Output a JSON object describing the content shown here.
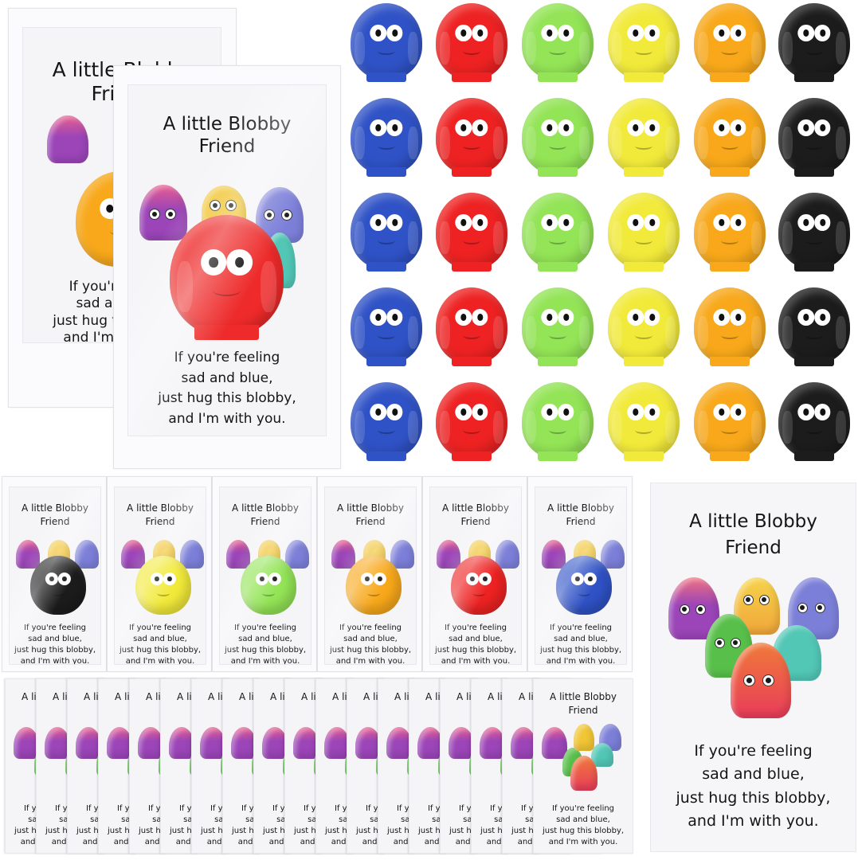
{
  "card_text": {
    "title_line1": "A little Blobby",
    "title_line2": "Friend",
    "poem_line1": "If you're feeling",
    "poem_line2": "sad and blue,",
    "poem_line3": "just hug this blobby,",
    "poem_line4": "and I'm with you.",
    "partial_title": "A l",
    "partial_poem1": "If y",
    "partial_poem2": "sa",
    "partial_poem3": "just h",
    "partial_poem4": "and"
  },
  "blob_colors": {
    "blue": "#2f52c6",
    "red": "#ee2222",
    "green": "#93e456",
    "yellow": "#f2ea3a",
    "orange": "#f8a81a",
    "black": "#1c1c1c"
  },
  "blob_grid": {
    "rows": 5,
    "columns": [
      "blue",
      "red",
      "green",
      "yellow",
      "orange",
      "black"
    ]
  },
  "packaged_cards_top": [
    {
      "blob_color": "orange"
    },
    {
      "blob_color": "red"
    }
  ],
  "packaged_cards_row": [
    {
      "blob_color": "black"
    },
    {
      "blob_color": "yellow"
    },
    {
      "blob_color": "green"
    },
    {
      "blob_color": "orange"
    },
    {
      "blob_color": "red"
    },
    {
      "blob_color": "blue"
    }
  ],
  "stacked_cards_count": 18,
  "jelly_friends": {
    "purple": "#9b45b8",
    "yellow": "#f1c534",
    "lavender": "#7c7fd8",
    "green": "#58c04a",
    "teal": "#52c7b6",
    "red": "#ec4b4e"
  }
}
